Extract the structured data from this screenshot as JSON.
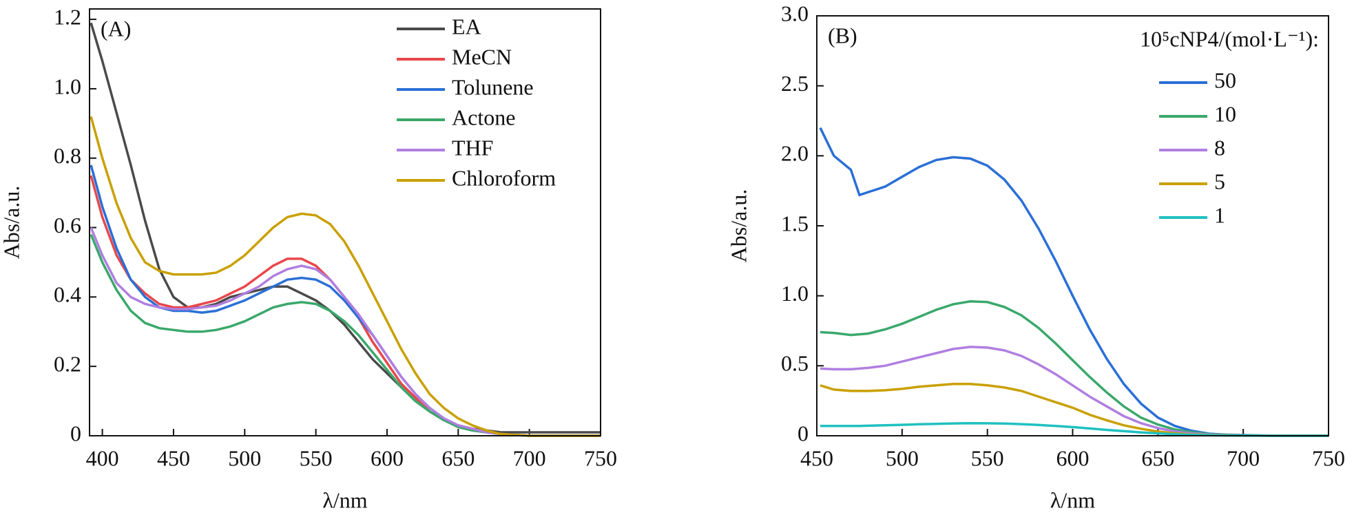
{
  "chart_data": [
    {
      "type": "line",
      "annotation": "(A)",
      "x_label": "λ/nm",
      "y_label": "Abs/a.u.",
      "xlim": [
        391,
        750
      ],
      "ylim": [
        0,
        1.23
      ],
      "xticks": [
        400,
        450,
        500,
        550,
        600,
        650,
        700,
        750
      ],
      "yticks": [
        0,
        0.2,
        0.4,
        0.6,
        0.8,
        {
          "value": 1,
          "label": "1.0"
        },
        1.2
      ],
      "legend": "upper right",
      "x": [
        392,
        400,
        410,
        420,
        430,
        440,
        450,
        460,
        470,
        480,
        490,
        500,
        510,
        520,
        530,
        540,
        550,
        560,
        570,
        580,
        590,
        600,
        610,
        620,
        630,
        640,
        650,
        660,
        670,
        680,
        700,
        720,
        750
      ],
      "series": [
        {
          "name": "EA",
          "color": "#4a4a4a",
          "values": [
            1.19,
            1.08,
            0.93,
            0.78,
            0.62,
            0.48,
            0.4,
            0.37,
            0.37,
            0.38,
            0.4,
            0.41,
            0.42,
            0.43,
            0.43,
            0.41,
            0.39,
            0.36,
            0.32,
            0.27,
            0.22,
            0.18,
            0.14,
            0.1,
            0.07,
            0.045,
            0.03,
            0.02,
            0.015,
            0.01,
            0.01,
            0.01,
            0.01
          ]
        },
        {
          "name": "MeCN",
          "color": "#e8474b",
          "values": [
            0.75,
            0.63,
            0.52,
            0.45,
            0.41,
            0.38,
            0.37,
            0.37,
            0.38,
            0.39,
            0.41,
            0.43,
            0.46,
            0.49,
            0.51,
            0.51,
            0.49,
            0.45,
            0.4,
            0.34,
            0.27,
            0.21,
            0.15,
            0.11,
            0.07,
            0.045,
            0.03,
            0.02,
            0.01,
            0.005,
            0,
            0,
            0
          ]
        },
        {
          "name": "Tolunene",
          "color": "#2a6fd6",
          "values": [
            0.78,
            0.66,
            0.54,
            0.45,
            0.4,
            0.37,
            0.36,
            0.36,
            0.355,
            0.36,
            0.375,
            0.39,
            0.41,
            0.43,
            0.45,
            0.455,
            0.45,
            0.43,
            0.39,
            0.34,
            0.29,
            0.23,
            0.17,
            0.12,
            0.08,
            0.05,
            0.03,
            0.02,
            0.01,
            0.005,
            0,
            0,
            0
          ]
        },
        {
          "name": "Actone",
          "color": "#3aa86b",
          "values": [
            0.58,
            0.5,
            0.42,
            0.36,
            0.325,
            0.31,
            0.305,
            0.3,
            0.3,
            0.305,
            0.315,
            0.33,
            0.35,
            0.37,
            0.38,
            0.385,
            0.38,
            0.36,
            0.33,
            0.29,
            0.24,
            0.19,
            0.14,
            0.1,
            0.07,
            0.045,
            0.025,
            0.015,
            0.01,
            0.005,
            0,
            0,
            0
          ]
        },
        {
          "name": "THF",
          "color": "#b07fe0",
          "values": [
            0.6,
            0.52,
            0.44,
            0.4,
            0.38,
            0.37,
            0.365,
            0.365,
            0.37,
            0.375,
            0.39,
            0.41,
            0.43,
            0.46,
            0.48,
            0.49,
            0.48,
            0.45,
            0.4,
            0.35,
            0.29,
            0.23,
            0.17,
            0.12,
            0.08,
            0.05,
            0.03,
            0.02,
            0.01,
            0.005,
            0,
            0,
            0
          ]
        },
        {
          "name": "Chloroform",
          "color": "#c9a000",
          "values": [
            0.92,
            0.8,
            0.67,
            0.57,
            0.5,
            0.475,
            0.465,
            0.465,
            0.465,
            0.47,
            0.49,
            0.52,
            0.56,
            0.6,
            0.63,
            0.64,
            0.635,
            0.61,
            0.56,
            0.49,
            0.41,
            0.33,
            0.25,
            0.18,
            0.12,
            0.08,
            0.05,
            0.03,
            0.015,
            0.005,
            0,
            0,
            0
          ]
        }
      ]
    },
    {
      "type": "line",
      "annotation": "(B)",
      "x_label": "λ/nm",
      "y_label": "Abs/a.u.",
      "legend_title": "10⁵cNP4/(mol·L⁻¹):",
      "xlim": [
        450,
        750
      ],
      "ylim": [
        0,
        3
      ],
      "xticks": [
        450,
        500,
        550,
        600,
        650,
        700,
        750
      ],
      "yticks": [
        0,
        0.5,
        {
          "value": 1,
          "label": "1.0"
        },
        1.5,
        {
          "value": 2,
          "label": "2.0"
        },
        2.5,
        {
          "value": 3,
          "label": "3.0"
        }
      ],
      "legend": "upper right",
      "x": [
        452,
        460,
        470,
        475,
        480,
        490,
        500,
        510,
        520,
        530,
        540,
        550,
        560,
        570,
        580,
        590,
        600,
        610,
        620,
        630,
        640,
        650,
        660,
        670,
        680,
        690,
        700,
        720,
        750
      ],
      "series": [
        {
          "name": "50",
          "color": "#2a6fd6",
          "values": [
            2.2,
            2.0,
            1.9,
            1.72,
            1.74,
            1.78,
            1.85,
            1.92,
            1.97,
            1.99,
            1.98,
            1.93,
            1.83,
            1.68,
            1.48,
            1.25,
            1.0,
            0.76,
            0.55,
            0.37,
            0.23,
            0.13,
            0.07,
            0.035,
            0.015,
            0.008,
            0.005,
            0,
            0
          ]
        },
        {
          "name": "10",
          "color": "#3aa86b",
          "values": [
            0.74,
            0.735,
            0.72,
            0.725,
            0.73,
            0.76,
            0.8,
            0.85,
            0.9,
            0.94,
            0.96,
            0.955,
            0.92,
            0.86,
            0.77,
            0.66,
            0.54,
            0.42,
            0.31,
            0.21,
            0.13,
            0.08,
            0.045,
            0.025,
            0.012,
            0.006,
            0.003,
            0,
            0
          ]
        },
        {
          "name": "8",
          "color": "#b07fe0",
          "values": [
            0.48,
            0.475,
            0.475,
            0.48,
            0.485,
            0.5,
            0.53,
            0.56,
            0.59,
            0.62,
            0.635,
            0.63,
            0.61,
            0.57,
            0.51,
            0.44,
            0.36,
            0.28,
            0.21,
            0.14,
            0.09,
            0.055,
            0.03,
            0.017,
            0.008,
            0.004,
            0.002,
            0,
            0
          ]
        },
        {
          "name": "5",
          "color": "#c9a000",
          "values": [
            0.36,
            0.33,
            0.32,
            0.32,
            0.32,
            0.325,
            0.335,
            0.35,
            0.36,
            0.37,
            0.37,
            0.36,
            0.345,
            0.32,
            0.28,
            0.24,
            0.2,
            0.15,
            0.11,
            0.075,
            0.05,
            0.03,
            0.017,
            0.01,
            0.005,
            0.003,
            0.001,
            0,
            0
          ]
        },
        {
          "name": "1",
          "color": "#1fc0c0",
          "values": [
            0.07,
            0.07,
            0.07,
            0.07,
            0.072,
            0.075,
            0.078,
            0.082,
            0.085,
            0.088,
            0.09,
            0.089,
            0.087,
            0.083,
            0.077,
            0.07,
            0.062,
            0.052,
            0.042,
            0.033,
            0.024,
            0.017,
            0.011,
            0.007,
            0.004,
            0.002,
            0.001,
            0,
            0
          ]
        }
      ]
    }
  ]
}
